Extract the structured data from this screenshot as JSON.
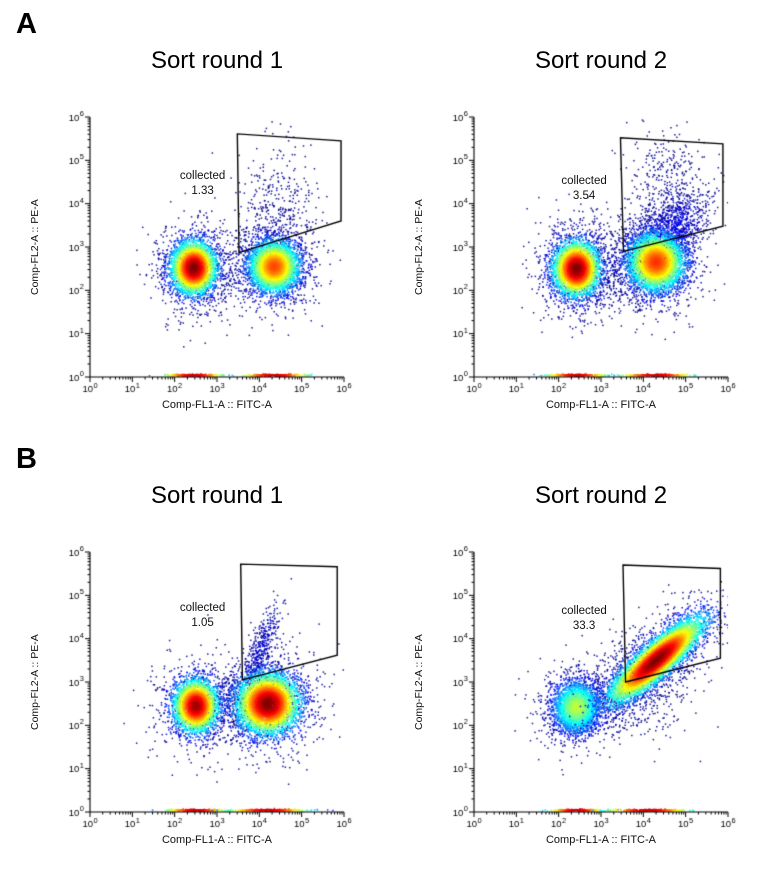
{
  "figure": {
    "panels": [
      {
        "label": "A"
      },
      {
        "label": "B"
      }
    ]
  },
  "chart_data": [
    {
      "type": "scatter",
      "subtype": "flow_cytometry_density",
      "panel": "A",
      "title": "Sort round 1",
      "xlabel": "Comp-FL1-A :: FITC-A",
      "ylabel": "Comp-FL2-A :: PE-A",
      "xscale": "log",
      "yscale": "log",
      "xlim": [
        1,
        1000000
      ],
      "ylim": [
        1,
        1000000
      ],
      "x_ticks_log10": [
        0,
        1,
        2,
        3,
        4,
        5,
        6
      ],
      "y_ticks_log10": [
        0,
        1,
        2,
        3,
        4,
        5,
        6
      ],
      "grid": false,
      "seed": 11,
      "gate": {
        "label": "collected",
        "value": "1.33",
        "label_pos_log10": [
          2.66,
          4.46
        ],
        "polygon_log10": [
          [
            3.52,
            2.87
          ],
          [
            3.48,
            5.61
          ],
          [
            5.93,
            5.45
          ],
          [
            5.93,
            3.6
          ]
        ]
      },
      "populations": [
        {
          "name": "background-scatter",
          "n": 150,
          "center": [
            3.4,
            2.6
          ],
          "sigma": [
            0.55,
            0.5
          ],
          "intensity": 0.02
        },
        {
          "name": "gate-scatter",
          "n": 330,
          "center": [
            4.45,
            3.95
          ],
          "sigma": [
            0.45,
            0.85
          ],
          "intensity": 0.02
        },
        {
          "name": "fitc-neg-halo",
          "n": 700,
          "center": [
            2.45,
            2.5
          ],
          "sigma": [
            0.5,
            0.55
          ],
          "intensity": 0.05
        },
        {
          "name": "fitc-pos-halo",
          "n": 700,
          "center": [
            4.35,
            2.6
          ],
          "sigma": [
            0.55,
            0.6
          ],
          "intensity": 0.05
        },
        {
          "name": "fitc-neg",
          "n": 3800,
          "center": [
            2.45,
            2.52
          ],
          "sigma": [
            0.26,
            0.3
          ],
          "intensity": 1.0
        },
        {
          "name": "fitc-pos",
          "n": 3800,
          "center": [
            4.35,
            2.55
          ],
          "sigma": [
            0.3,
            0.3
          ],
          "intensity": 0.75
        },
        {
          "name": "axis-strip-neg",
          "n": 260,
          "center": [
            2.45,
            0.04
          ],
          "sigma": [
            0.33,
            0.012
          ],
          "strip": true
        },
        {
          "name": "axis-strip-pos",
          "n": 260,
          "center": [
            4.35,
            0.04
          ],
          "sigma": [
            0.38,
            0.012
          ],
          "strip": true
        }
      ]
    },
    {
      "type": "scatter",
      "subtype": "flow_cytometry_density",
      "panel": "A",
      "title": "Sort round 2",
      "xlabel": "Comp-FL1-A :: FITC-A",
      "ylabel": "Comp-FL2-A :: PE-A",
      "xscale": "log",
      "yscale": "log",
      "xlim": [
        1,
        1000000
      ],
      "ylim": [
        1,
        1000000
      ],
      "x_ticks_log10": [
        0,
        1,
        2,
        3,
        4,
        5,
        6
      ],
      "y_ticks_log10": [
        0,
        1,
        2,
        3,
        4,
        5,
        6
      ],
      "grid": false,
      "seed": 22,
      "gate": {
        "label": "collected",
        "value": "3.54",
        "label_pos_log10": [
          2.6,
          4.34
        ],
        "polygon_log10": [
          [
            3.53,
            2.9
          ],
          [
            3.46,
            5.52
          ],
          [
            5.88,
            5.38
          ],
          [
            5.88,
            3.48
          ]
        ]
      },
      "populations": [
        {
          "name": "background-scatter",
          "n": 200,
          "center": [
            3.4,
            2.7
          ],
          "sigma": [
            0.5,
            0.5
          ],
          "intensity": 0.02
        },
        {
          "name": "gate-scatter",
          "n": 420,
          "center": [
            4.6,
            4.25
          ],
          "sigma": [
            0.45,
            0.75
          ],
          "intensity": 0.03
        },
        {
          "name": "fitc-neg-halo",
          "n": 800,
          "center": [
            2.45,
            2.5
          ],
          "sigma": [
            0.5,
            0.6
          ],
          "intensity": 0.05
        },
        {
          "name": "pos-tail",
          "n": 1100,
          "center": [
            4.55,
            3.2
          ],
          "sigma": [
            0.5,
            0.55
          ],
          "rho": 0.65,
          "intensity": 0.12
        },
        {
          "name": "fitc-pos-halo",
          "n": 800,
          "center": [
            4.3,
            2.65
          ],
          "sigma": [
            0.55,
            0.6
          ],
          "intensity": 0.06
        },
        {
          "name": "fitc-neg",
          "n": 4000,
          "center": [
            2.42,
            2.5
          ],
          "sigma": [
            0.27,
            0.31
          ],
          "intensity": 1.0
        },
        {
          "name": "fitc-pos",
          "n": 4200,
          "center": [
            4.3,
            2.65
          ],
          "sigma": [
            0.33,
            0.33
          ],
          "intensity": 0.85
        },
        {
          "name": "axis-strip-neg",
          "n": 260,
          "center": [
            2.42,
            0.04
          ],
          "sigma": [
            0.33,
            0.012
          ],
          "strip": true
        },
        {
          "name": "axis-strip-pos",
          "n": 280,
          "center": [
            4.3,
            0.04
          ],
          "sigma": [
            0.4,
            0.012
          ],
          "strip": true
        }
      ]
    },
    {
      "type": "scatter",
      "subtype": "flow_cytometry_density",
      "panel": "B",
      "title": "Sort round 1",
      "xlabel": "Comp-FL1-A :: FITC-A",
      "ylabel": "Comp-FL2-A :: PE-A",
      "xscale": "log",
      "yscale": "log",
      "xlim": [
        1,
        1000000
      ],
      "ylim": [
        1,
        1000000
      ],
      "x_ticks_log10": [
        0,
        1,
        2,
        3,
        4,
        5,
        6
      ],
      "y_ticks_log10": [
        0,
        1,
        2,
        3,
        4,
        5,
        6
      ],
      "grid": false,
      "seed": 33,
      "gate": {
        "label": "collected",
        "value": "1.05",
        "label_pos_log10": [
          2.66,
          4.52
        ],
        "polygon_log10": [
          [
            3.6,
            3.05
          ],
          [
            3.56,
            5.72
          ],
          [
            5.84,
            5.66
          ],
          [
            5.84,
            3.62
          ]
        ]
      },
      "populations": [
        {
          "name": "background-scatter",
          "n": 180,
          "center": [
            3.4,
            2.55
          ],
          "sigma": [
            0.5,
            0.5
          ],
          "intensity": 0.02
        },
        {
          "name": "diag-tail",
          "n": 380,
          "center": [
            4.05,
            3.75
          ],
          "sigma": [
            0.22,
            0.5
          ],
          "rho": 0.75,
          "intensity": 0.05
        },
        {
          "name": "fitc-neg-halo",
          "n": 650,
          "center": [
            2.5,
            2.45
          ],
          "sigma": [
            0.5,
            0.55
          ],
          "intensity": 0.05
        },
        {
          "name": "fitc-pos-halo",
          "n": 900,
          "center": [
            4.2,
            2.55
          ],
          "sigma": [
            0.6,
            0.6
          ],
          "intensity": 0.06
        },
        {
          "name": "fitc-neg",
          "n": 3200,
          "center": [
            2.5,
            2.45
          ],
          "sigma": [
            0.26,
            0.3
          ],
          "intensity": 0.9
        },
        {
          "name": "fitc-pos",
          "n": 4800,
          "center": [
            4.2,
            2.5
          ],
          "sigma": [
            0.36,
            0.34
          ],
          "intensity": 1.0
        },
        {
          "name": "axis-strip-neg",
          "n": 240,
          "center": [
            2.5,
            0.04
          ],
          "sigma": [
            0.33,
            0.012
          ],
          "strip": true
        },
        {
          "name": "axis-strip-pos",
          "n": 300,
          "center": [
            4.2,
            0.04
          ],
          "sigma": [
            0.42,
            0.012
          ],
          "strip": true
        }
      ]
    },
    {
      "type": "scatter",
      "subtype": "flow_cytometry_density",
      "panel": "B",
      "title": "Sort round 2",
      "xlabel": "Comp-FL1-A :: FITC-A",
      "ylabel": "Comp-FL2-A :: PE-A",
      "xscale": "log",
      "yscale": "log",
      "xlim": [
        1,
        1000000
      ],
      "ylim": [
        1,
        1000000
      ],
      "x_ticks_log10": [
        0,
        1,
        2,
        3,
        4,
        5,
        6
      ],
      "y_ticks_log10": [
        0,
        1,
        2,
        3,
        4,
        5,
        6
      ],
      "grid": false,
      "seed": 44,
      "gate": {
        "label": "collected",
        "value": "33.3",
        "label_pos_log10": [
          2.6,
          4.46
        ],
        "polygon_log10": [
          [
            3.58,
            3.0
          ],
          [
            3.52,
            5.7
          ],
          [
            5.82,
            5.62
          ],
          [
            5.82,
            3.55
          ]
        ]
      },
      "populations": [
        {
          "name": "background-scatter",
          "n": 280,
          "center": [
            3.8,
            2.6
          ],
          "sigma": [
            0.6,
            0.45
          ],
          "intensity": 0.03
        },
        {
          "name": "diag-halo",
          "n": 900,
          "center": [
            4.2,
            3.4
          ],
          "sigma": [
            0.8,
            0.7
          ],
          "rho": 0.6,
          "intensity": 0.05
        },
        {
          "name": "fitc-neg-halo",
          "n": 500,
          "center": [
            2.42,
            2.42
          ],
          "sigma": [
            0.48,
            0.5
          ],
          "intensity": 0.04
        },
        {
          "name": "fitc-neg",
          "n": 2600,
          "center": [
            2.42,
            2.42
          ],
          "sigma": [
            0.28,
            0.3
          ],
          "intensity": 0.5
        },
        {
          "name": "sorted-diagonal",
          "n": 6500,
          "center": [
            4.3,
            3.5
          ],
          "sigma": [
            0.55,
            0.48
          ],
          "rho": 0.86,
          "intensity": 1.0
        },
        {
          "name": "axis-strip-neg",
          "n": 200,
          "center": [
            2.42,
            0.04
          ],
          "sigma": [
            0.3,
            0.012
          ],
          "strip": true
        },
        {
          "name": "axis-strip-pos",
          "n": 280,
          "center": [
            4.1,
            0.04
          ],
          "sigma": [
            0.45,
            0.012
          ],
          "strip": true
        }
      ]
    }
  ]
}
